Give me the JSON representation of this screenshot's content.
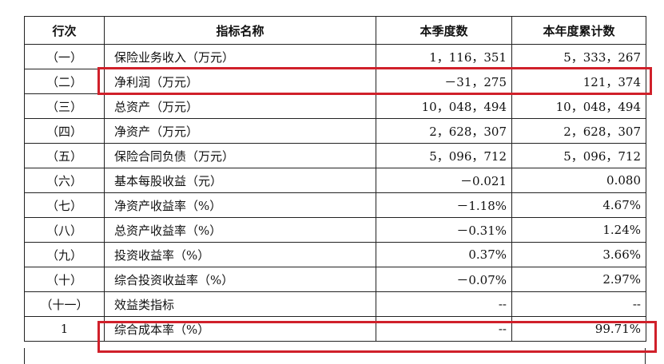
{
  "table": {
    "header": [
      "行次",
      "指标名称",
      "本季度数",
      "本年度累计数"
    ],
    "rows": [
      [
        "（一）",
        "保险业务收入（万元）",
        "1，116，351",
        "5，333，267"
      ],
      [
        "（二）",
        "净利润（万元）",
        "－31，275",
        "121，374"
      ],
      [
        "（三）",
        "总资产（万元）",
        "10，048，494",
        "10，048，494"
      ],
      [
        "（四）",
        "净资产（万元）",
        "2，628，307",
        "2，628，307"
      ],
      [
        "（五）",
        "保险合同负债（万元）",
        "5，096，712",
        "5，096，712"
      ],
      [
        "（六）",
        "基本每股收益（元）",
        "－0.021",
        "0.080"
      ],
      [
        "（七）",
        "净资产收益率（%）",
        "－1.18%",
        "4.67%"
      ],
      [
        "（八）",
        "总资产收益率（%）",
        "－0.31%",
        "1.24%"
      ],
      [
        "（九）",
        "投资收益率（%）",
        "0.37%",
        "3.66%"
      ],
      [
        "（十）",
        "综合投资收益率（%）",
        "－0.07%",
        "2.97%"
      ],
      [
        "（十一）",
        "效益类指标",
        "--",
        "--"
      ],
      [
        "1",
        "综合成本率（%）",
        "--",
        "99.71%"
      ]
    ]
  }
}
